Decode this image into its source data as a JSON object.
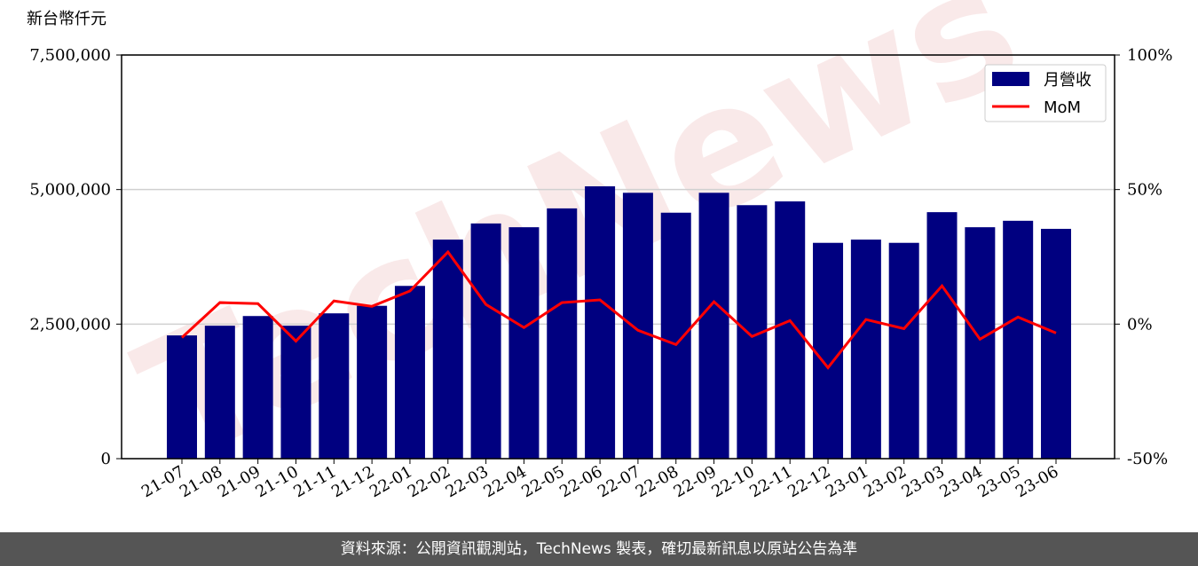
{
  "chart_data": {
    "type": "bar-line",
    "y_label": "新台幣仟元",
    "watermark": "TechNews",
    "categories": [
      "21-07",
      "21-08",
      "21-09",
      "21-10",
      "21-11",
      "21-12",
      "22-01",
      "22-02",
      "22-03",
      "22-04",
      "22-05",
      "22-06",
      "22-07",
      "22-08",
      "22-09",
      "22-10",
      "22-11",
      "22-12",
      "23-01",
      "23-02",
      "23-03",
      "23-04",
      "23-05",
      "23-06"
    ],
    "series": [
      {
        "name": "月營收",
        "type": "bar",
        "color": "#000080",
        "values": [
          2290000,
          2470000,
          2650000,
          2470000,
          2700000,
          2840000,
          3210000,
          4070000,
          4370000,
          4300000,
          4650000,
          5060000,
          4940000,
          4570000,
          4940000,
          4710000,
          4780000,
          4010000,
          4070000,
          4010000,
          4580000,
          4300000,
          4420000,
          4270000
        ]
      },
      {
        "name": "MoM",
        "type": "line",
        "axis": "y2",
        "color": "#ff0000",
        "values": [
          -5,
          8,
          7.6,
          -6.3,
          8.6,
          6.6,
          12.3,
          26.8,
          7.3,
          -1.3,
          8,
          9,
          -2.3,
          -7.6,
          8.3,
          -4.6,
          1.3,
          -16.2,
          1.7,
          -1.7,
          14.2,
          -5.6,
          2.6,
          -3.3
        ]
      }
    ],
    "ylim": [
      0,
      7500000
    ],
    "yticks": [
      0,
      {
        "value": 2500000,
        "label": "2,500,000"
      },
      {
        "value": 5000000,
        "label": "5,000,000"
      },
      {
        "value": 7500000,
        "label": "7,500,000"
      }
    ],
    "y2lim": [
      -50,
      100
    ],
    "y2ticks": [
      {
        "value": -50,
        "label": "-50%"
      },
      {
        "value": 0,
        "label": "0%"
      },
      {
        "value": 50,
        "label": "50%"
      },
      {
        "value": 100,
        "label": "100%"
      }
    ],
    "grid": true,
    "legend": "upper right",
    "footer": "資料來源：公開資訊觀測站，TechNews 製表，確切最新訊息以原站公告為準"
  }
}
